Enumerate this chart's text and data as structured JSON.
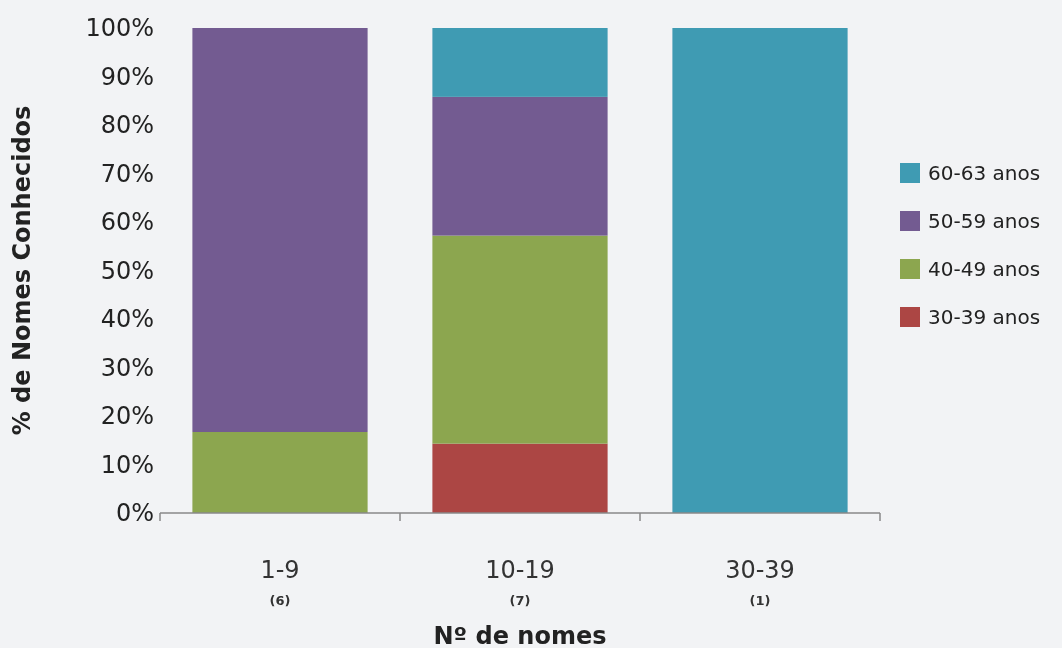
{
  "chart_data": {
    "type": "bar",
    "stacked": true,
    "xlabel": "Nº de nomes",
    "ylabel": "% de Nomes Conhecidos",
    "categories": [
      "1-9\n(6)",
      "10-19\n(7)",
      "30-39\n(1)"
    ],
    "series": [
      {
        "name": "30-39 anos",
        "color": "#ac4644",
        "values": [
          0,
          14.3,
          0
        ]
      },
      {
        "name": "40-49 anos",
        "color": "#8ca64f",
        "values": [
          16.7,
          42.9,
          0
        ]
      },
      {
        "name": "50-59 anos",
        "color": "#735b91",
        "values": [
          83.3,
          28.6,
          0
        ]
      },
      {
        "name": "60-63 anos",
        "color": "#3f9bb3",
        "values": [
          0,
          14.2,
          100
        ]
      }
    ],
    "ylim": [
      0,
      100
    ],
    "yticks": [
      {
        "value": 0,
        "label": "0%"
      },
      {
        "value": 10,
        "label": "10%"
      },
      {
        "value": 20,
        "label": "20%"
      },
      {
        "value": 30,
        "label": "30%"
      },
      {
        "value": 40,
        "label": "40%"
      },
      {
        "value": 50,
        "label": "50%"
      },
      {
        "value": 60,
        "label": "60%"
      },
      {
        "value": 70,
        "label": "70%"
      },
      {
        "value": 80,
        "label": "80%"
      },
      {
        "value": 90,
        "label": "90%"
      },
      {
        "value": 100,
        "label": "100%"
      }
    ],
    "legend": "right",
    "grid": false
  }
}
